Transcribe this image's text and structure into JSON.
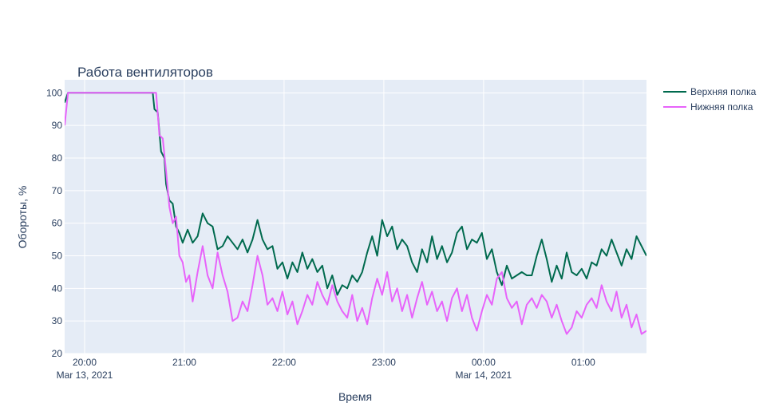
{
  "chart_data": {
    "type": "line",
    "title": "Работа вентиляторов",
    "xlabel": "Время",
    "ylabel": "Обороты, %",
    "x_range": [
      "2021-03-13 19:48",
      "2021-03-14 01:38"
    ],
    "ylim": [
      20,
      104
    ],
    "y_ticks": [
      20,
      30,
      40,
      50,
      60,
      70,
      80,
      90,
      100
    ],
    "x_ticks": [
      {
        "time": "2021-03-13 20:00",
        "label": "20:00",
        "sublabel": "Mar 13, 2021"
      },
      {
        "time": "2021-03-13 21:00",
        "label": "21:00",
        "sublabel": ""
      },
      {
        "time": "2021-03-13 22:00",
        "label": "22:00",
        "sublabel": ""
      },
      {
        "time": "2021-03-13 23:00",
        "label": "23:00",
        "sublabel": ""
      },
      {
        "time": "2021-03-14 00:00",
        "label": "00:00",
        "sublabel": "Mar 14, 2021"
      },
      {
        "time": "2021-03-14 01:00",
        "label": "01:00",
        "sublabel": ""
      }
    ],
    "grid": true,
    "legend_position": "top-right",
    "background_color": "#e5ecf6",
    "series": [
      {
        "name": "Верхняя полка",
        "color": "#006a4e",
        "points": [
          [
            "2021-03-13 19:48",
            97
          ],
          [
            "2021-03-13 19:50",
            100
          ],
          [
            "2021-03-13 20:00",
            100
          ],
          [
            "2021-03-13 20:20",
            100
          ],
          [
            "2021-03-13 20:41",
            100
          ],
          [
            "2021-03-13 20:42",
            95
          ],
          [
            "2021-03-13 20:44",
            94
          ],
          [
            "2021-03-13 20:46",
            82
          ],
          [
            "2021-03-13 20:48",
            80
          ],
          [
            "2021-03-13 20:49",
            72
          ],
          [
            "2021-03-13 20:51",
            67
          ],
          [
            "2021-03-13 20:53",
            66
          ],
          [
            "2021-03-13 20:55",
            59
          ],
          [
            "2021-03-13 20:57",
            57
          ],
          [
            "2021-03-13 20:59",
            54
          ],
          [
            "2021-03-13 21:02",
            58
          ],
          [
            "2021-03-13 21:05",
            54
          ],
          [
            "2021-03-13 21:08",
            56
          ],
          [
            "2021-03-13 21:11",
            63
          ],
          [
            "2021-03-13 21:14",
            60
          ],
          [
            "2021-03-13 21:17",
            59
          ],
          [
            "2021-03-13 21:20",
            52
          ],
          [
            "2021-03-13 21:23",
            53
          ],
          [
            "2021-03-13 21:26",
            56
          ],
          [
            "2021-03-13 21:29",
            54
          ],
          [
            "2021-03-13 21:32",
            52
          ],
          [
            "2021-03-13 21:35",
            55
          ],
          [
            "2021-03-13 21:38",
            51
          ],
          [
            "2021-03-13 21:41",
            55
          ],
          [
            "2021-03-13 21:44",
            61
          ],
          [
            "2021-03-13 21:47",
            55
          ],
          [
            "2021-03-13 21:50",
            52
          ],
          [
            "2021-03-13 21:53",
            53
          ],
          [
            "2021-03-13 21:56",
            46
          ],
          [
            "2021-03-13 21:59",
            48
          ],
          [
            "2021-03-13 22:02",
            43
          ],
          [
            "2021-03-13 22:05",
            48
          ],
          [
            "2021-03-13 22:08",
            45
          ],
          [
            "2021-03-13 22:11",
            51
          ],
          [
            "2021-03-13 22:14",
            46
          ],
          [
            "2021-03-13 22:17",
            49
          ],
          [
            "2021-03-13 22:20",
            45
          ],
          [
            "2021-03-13 22:23",
            47
          ],
          [
            "2021-03-13 22:26",
            40
          ],
          [
            "2021-03-13 22:29",
            44
          ],
          [
            "2021-03-13 22:32",
            38
          ],
          [
            "2021-03-13 22:35",
            41
          ],
          [
            "2021-03-13 22:38",
            40
          ],
          [
            "2021-03-13 22:41",
            44
          ],
          [
            "2021-03-13 22:44",
            42
          ],
          [
            "2021-03-13 22:47",
            45
          ],
          [
            "2021-03-13 22:50",
            51
          ],
          [
            "2021-03-13 22:53",
            56
          ],
          [
            "2021-03-13 22:56",
            50
          ],
          [
            "2021-03-13 22:59",
            61
          ],
          [
            "2021-03-13 23:02",
            56
          ],
          [
            "2021-03-13 23:05",
            59
          ],
          [
            "2021-03-13 23:08",
            52
          ],
          [
            "2021-03-13 23:11",
            55
          ],
          [
            "2021-03-13 23:14",
            53
          ],
          [
            "2021-03-13 23:17",
            48
          ],
          [
            "2021-03-13 23:20",
            45
          ],
          [
            "2021-03-13 23:23",
            52
          ],
          [
            "2021-03-13 23:26",
            48
          ],
          [
            "2021-03-13 23:29",
            56
          ],
          [
            "2021-03-13 23:32",
            49
          ],
          [
            "2021-03-13 23:35",
            53
          ],
          [
            "2021-03-13 23:38",
            48
          ],
          [
            "2021-03-13 23:41",
            51
          ],
          [
            "2021-03-13 23:44",
            57
          ],
          [
            "2021-03-13 23:47",
            59
          ],
          [
            "2021-03-13 23:50",
            52
          ],
          [
            "2021-03-13 23:53",
            55
          ],
          [
            "2021-03-13 23:56",
            54
          ],
          [
            "2021-03-13 23:59",
            57
          ],
          [
            "2021-03-14 00:02",
            49
          ],
          [
            "2021-03-14 00:05",
            52
          ],
          [
            "2021-03-14 00:08",
            45
          ],
          [
            "2021-03-14 00:11",
            41
          ],
          [
            "2021-03-14 00:14",
            47
          ],
          [
            "2021-03-14 00:17",
            43
          ],
          [
            "2021-03-14 00:20",
            44
          ],
          [
            "2021-03-14 00:23",
            45
          ],
          [
            "2021-03-14 00:26",
            44
          ],
          [
            "2021-03-14 00:29",
            44
          ],
          [
            "2021-03-14 00:32",
            50
          ],
          [
            "2021-03-14 00:35",
            55
          ],
          [
            "2021-03-14 00:38",
            49
          ],
          [
            "2021-03-14 00:41",
            42
          ],
          [
            "2021-03-14 00:44",
            47
          ],
          [
            "2021-03-14 00:47",
            43
          ],
          [
            "2021-03-14 00:50",
            51
          ],
          [
            "2021-03-14 00:53",
            45
          ],
          [
            "2021-03-14 00:56",
            44
          ],
          [
            "2021-03-14 00:59",
            46
          ],
          [
            "2021-03-14 01:02",
            43
          ],
          [
            "2021-03-14 01:05",
            48
          ],
          [
            "2021-03-14 01:08",
            47
          ],
          [
            "2021-03-14 01:11",
            52
          ],
          [
            "2021-03-14 01:14",
            50
          ],
          [
            "2021-03-14 01:17",
            55
          ],
          [
            "2021-03-14 01:20",
            51
          ],
          [
            "2021-03-14 01:23",
            47
          ],
          [
            "2021-03-14 01:26",
            52
          ],
          [
            "2021-03-14 01:29",
            49
          ],
          [
            "2021-03-14 01:32",
            56
          ],
          [
            "2021-03-14 01:35",
            53
          ],
          [
            "2021-03-14 01:38",
            50
          ]
        ]
      },
      {
        "name": "Нижняя полка",
        "color": "#e763fa",
        "points": [
          [
            "2021-03-13 19:48",
            90
          ],
          [
            "2021-03-13 19:50",
            100
          ],
          [
            "2021-03-13 20:00",
            100
          ],
          [
            "2021-03-13 20:20",
            100
          ],
          [
            "2021-03-13 20:43",
            100
          ],
          [
            "2021-03-13 20:45",
            87
          ],
          [
            "2021-03-13 20:47",
            86
          ],
          [
            "2021-03-13 20:49",
            76
          ],
          [
            "2021-03-13 20:51",
            65
          ],
          [
            "2021-03-13 20:53",
            60
          ],
          [
            "2021-03-13 20:55",
            62
          ],
          [
            "2021-03-13 20:57",
            50
          ],
          [
            "2021-03-13 20:59",
            48
          ],
          [
            "2021-03-13 21:01",
            42
          ],
          [
            "2021-03-13 21:03",
            44
          ],
          [
            "2021-03-13 21:05",
            36
          ],
          [
            "2021-03-13 21:08",
            45
          ],
          [
            "2021-03-13 21:11",
            53
          ],
          [
            "2021-03-13 21:14",
            44
          ],
          [
            "2021-03-13 21:17",
            40
          ],
          [
            "2021-03-13 21:20",
            51
          ],
          [
            "2021-03-13 21:23",
            44
          ],
          [
            "2021-03-13 21:26",
            39
          ],
          [
            "2021-03-13 21:29",
            30
          ],
          [
            "2021-03-13 21:32",
            31
          ],
          [
            "2021-03-13 21:35",
            36
          ],
          [
            "2021-03-13 21:38",
            33
          ],
          [
            "2021-03-13 21:41",
            41
          ],
          [
            "2021-03-13 21:44",
            50
          ],
          [
            "2021-03-13 21:47",
            44
          ],
          [
            "2021-03-13 21:50",
            35
          ],
          [
            "2021-03-13 21:53",
            37
          ],
          [
            "2021-03-13 21:56",
            33
          ],
          [
            "2021-03-13 21:59",
            39
          ],
          [
            "2021-03-13 22:02",
            32
          ],
          [
            "2021-03-13 22:05",
            36
          ],
          [
            "2021-03-13 22:08",
            29
          ],
          [
            "2021-03-13 22:11",
            33
          ],
          [
            "2021-03-13 22:14",
            38
          ],
          [
            "2021-03-13 22:17",
            35
          ],
          [
            "2021-03-13 22:20",
            42
          ],
          [
            "2021-03-13 22:23",
            38
          ],
          [
            "2021-03-13 22:26",
            35
          ],
          [
            "2021-03-13 22:29",
            41
          ],
          [
            "2021-03-13 22:32",
            36
          ],
          [
            "2021-03-13 22:35",
            33
          ],
          [
            "2021-03-13 22:38",
            31
          ],
          [
            "2021-03-13 22:41",
            38
          ],
          [
            "2021-03-13 22:44",
            30
          ],
          [
            "2021-03-13 22:47",
            34
          ],
          [
            "2021-03-13 22:50",
            29
          ],
          [
            "2021-03-13 22:53",
            37
          ],
          [
            "2021-03-13 22:56",
            43
          ],
          [
            "2021-03-13 22:59",
            38
          ],
          [
            "2021-03-13 23:02",
            45
          ],
          [
            "2021-03-13 23:05",
            36
          ],
          [
            "2021-03-13 23:08",
            40
          ],
          [
            "2021-03-13 23:11",
            33
          ],
          [
            "2021-03-13 23:14",
            38
          ],
          [
            "2021-03-13 23:17",
            31
          ],
          [
            "2021-03-13 23:20",
            37
          ],
          [
            "2021-03-13 23:23",
            42
          ],
          [
            "2021-03-13 23:26",
            35
          ],
          [
            "2021-03-13 23:29",
            39
          ],
          [
            "2021-03-13 23:32",
            33
          ],
          [
            "2021-03-13 23:35",
            36
          ],
          [
            "2021-03-13 23:38",
            30
          ],
          [
            "2021-03-13 23:41",
            37
          ],
          [
            "2021-03-13 23:44",
            40
          ],
          [
            "2021-03-13 23:47",
            33
          ],
          [
            "2021-03-13 23:50",
            38
          ],
          [
            "2021-03-13 23:53",
            31
          ],
          [
            "2021-03-13 23:56",
            27
          ],
          [
            "2021-03-13 23:59",
            33
          ],
          [
            "2021-03-14 00:02",
            38
          ],
          [
            "2021-03-14 00:05",
            35
          ],
          [
            "2021-03-14 00:08",
            43
          ],
          [
            "2021-03-14 00:11",
            45
          ],
          [
            "2021-03-14 00:14",
            37
          ],
          [
            "2021-03-14 00:17",
            34
          ],
          [
            "2021-03-14 00:20",
            36
          ],
          [
            "2021-03-14 00:23",
            29
          ],
          [
            "2021-03-14 00:26",
            35
          ],
          [
            "2021-03-14 00:29",
            37
          ],
          [
            "2021-03-14 00:32",
            34
          ],
          [
            "2021-03-14 00:35",
            38
          ],
          [
            "2021-03-14 00:38",
            36
          ],
          [
            "2021-03-14 00:41",
            31
          ],
          [
            "2021-03-14 00:44",
            35
          ],
          [
            "2021-03-14 00:47",
            30
          ],
          [
            "2021-03-14 00:50",
            26
          ],
          [
            "2021-03-14 00:53",
            28
          ],
          [
            "2021-03-14 00:56",
            33
          ],
          [
            "2021-03-14 00:59",
            31
          ],
          [
            "2021-03-14 01:02",
            35
          ],
          [
            "2021-03-14 01:05",
            37
          ],
          [
            "2021-03-14 01:08",
            34
          ],
          [
            "2021-03-14 01:11",
            41
          ],
          [
            "2021-03-14 01:14",
            36
          ],
          [
            "2021-03-14 01:17",
            33
          ],
          [
            "2021-03-14 01:20",
            39
          ],
          [
            "2021-03-14 01:23",
            31
          ],
          [
            "2021-03-14 01:26",
            35
          ],
          [
            "2021-03-14 01:29",
            28
          ],
          [
            "2021-03-14 01:32",
            32
          ],
          [
            "2021-03-14 01:35",
            26
          ],
          [
            "2021-03-14 01:38",
            27
          ]
        ]
      }
    ]
  }
}
